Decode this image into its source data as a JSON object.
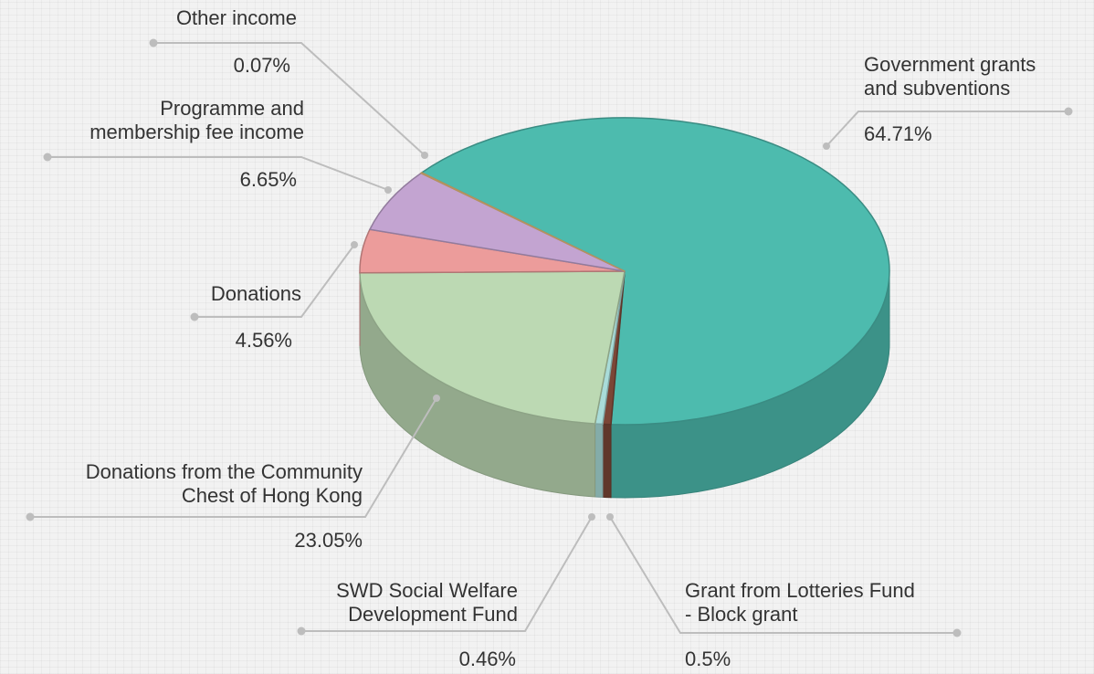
{
  "chart_data": {
    "type": "pie",
    "categories": [
      "Government grants\nand subventions",
      "Grant from Lotteries Fund\n- Block grant",
      "SWD Social Welfare\nDevelopment Fund",
      "Donations from the Community\nChest of Hong Kong",
      "Donations",
      "Programme and\nmembership fee income",
      "Other income"
    ],
    "values": [
      64.71,
      0.5,
      0.46,
      23.05,
      4.56,
      6.65,
      0.07
    ],
    "value_labels": [
      "64.71%",
      "0.5%",
      "0.46%",
      "23.05%",
      "4.56%",
      "6.65%",
      "0.07%"
    ],
    "colors": [
      "#4dbbae",
      "#7b4636",
      "#a9dcd9",
      "#bcd9b3",
      "#ec9c9b",
      "#c3a4d1",
      "#f1c27d"
    ]
  }
}
